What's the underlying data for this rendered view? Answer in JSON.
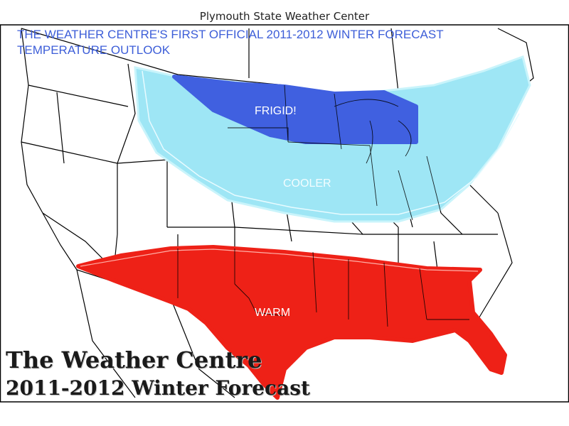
{
  "header": {
    "source": "Plymouth State Weather Center"
  },
  "forecast": {
    "title_line1": "THE WEATHER CENTRE'S FIRST OFFICIAL 2011-2012 WINTER FORECAST",
    "title_line2": "TEMPERATURE OUTLOOK"
  },
  "zones": {
    "frigid": {
      "label": "FRIGID!",
      "color": "#4060e0"
    },
    "cooler": {
      "label": "COOLER",
      "color": "#9ee6f5"
    },
    "warm": {
      "label": "WARM",
      "color": "#ee2117"
    }
  },
  "branding": {
    "line1": "The Weather Centre",
    "line2": "2011-2012 Winter Forecast"
  },
  "colors": {
    "title": "#3d5ed8",
    "boundary": "#000000",
    "background": "#ffffff"
  }
}
